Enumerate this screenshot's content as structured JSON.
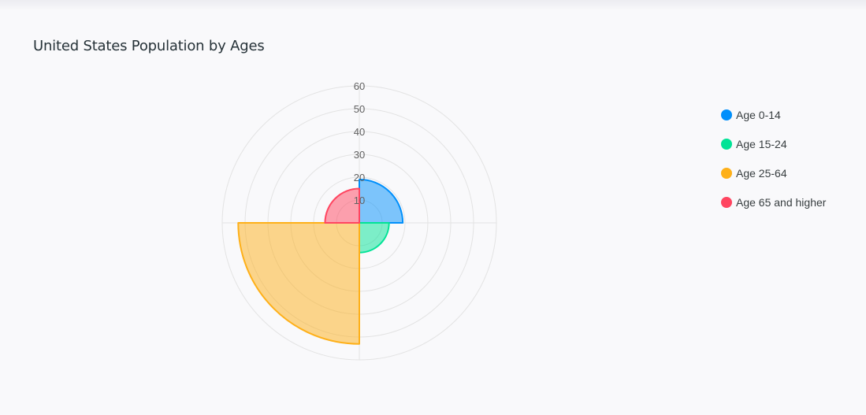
{
  "title": "United States Population by Ages",
  "chart_data": {
    "type": "polar-area",
    "title": "United States Population by Ages",
    "categories": [
      "Age 0-14",
      "Age 15-24",
      "Age 25-64",
      "Age 65 and higher"
    ],
    "values": [
      19,
      13,
      53,
      15
    ],
    "colors": [
      "#008ffb",
      "#00e396",
      "#feb019",
      "#ff4560"
    ],
    "r_ticks": [
      10,
      20,
      30,
      40,
      50,
      60
    ],
    "r_range": [
      0,
      60
    ],
    "grid": true,
    "legend_position": "right"
  }
}
